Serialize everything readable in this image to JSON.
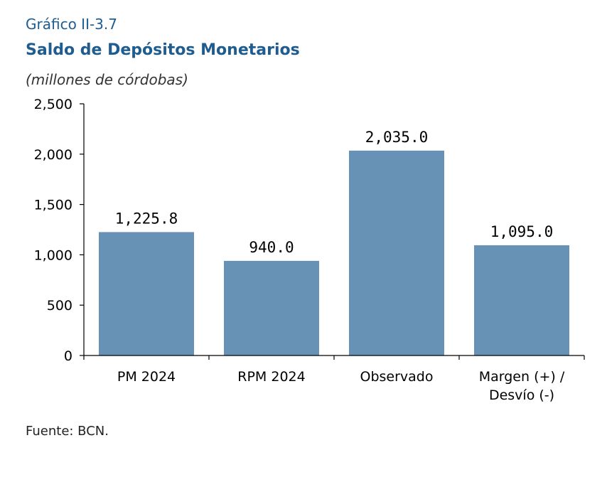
{
  "header": {
    "figure_label": "Gráfico II-3.7",
    "title": "Saldo de Depósitos Monetarios",
    "subtitle": "(millones de córdobas)"
  },
  "footer": {
    "source": "Fuente: BCN."
  },
  "chart_data": {
    "type": "bar",
    "categories": [
      [
        "PM 2024"
      ],
      [
        "RPM 2024"
      ],
      [
        "Observado"
      ],
      [
        "Margen (+) /",
        "Desvío (-)"
      ]
    ],
    "values": [
      1225.8,
      940.0,
      2035.0,
      1095.0
    ],
    "data_labels": [
      "1,225.8",
      "940.0",
      "2,035.0",
      "1,095.0"
    ],
    "ylim": [
      0,
      2500
    ],
    "yticks": [
      0,
      500,
      1000,
      1500,
      2000,
      2500
    ],
    "ytick_labels": [
      "0",
      "500",
      "1,000",
      "1,500",
      "2,000",
      "2,500"
    ],
    "grid": false,
    "bar_color": "#6792b5",
    "title_color": "#1f5c8f"
  }
}
